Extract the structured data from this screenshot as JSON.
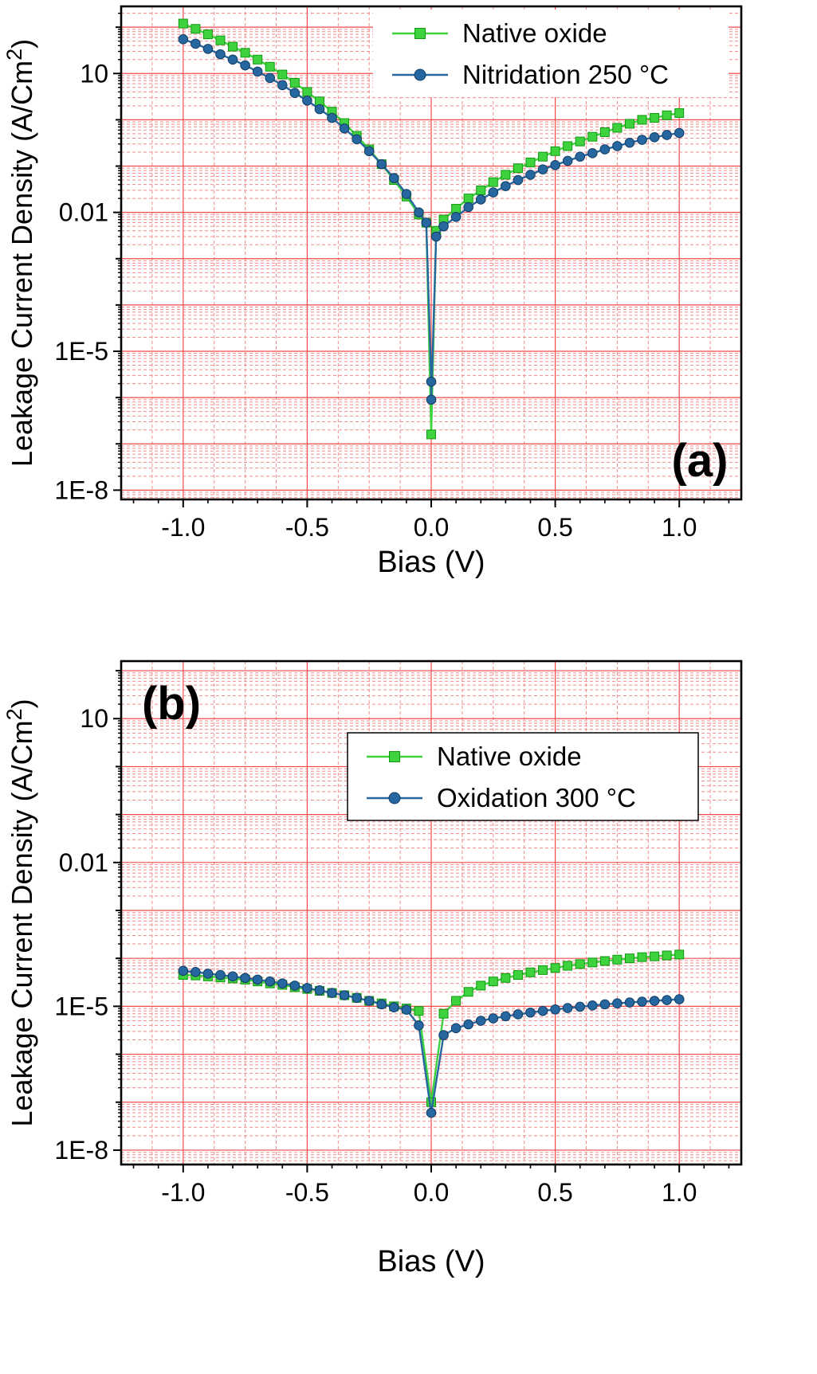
{
  "figure": {
    "title": "Leakage current density vs bias, two panels",
    "background": "#ffffff",
    "colors": {
      "grid_major": "#f04a4a",
      "grid_minor": "#f28b8b",
      "axis": "#000000",
      "text": "#000000",
      "legend_border": "#000000",
      "green": "#3fd23f",
      "green_edge": "#119911",
      "blue": "#2767a0",
      "blue_edge": "#123c63"
    }
  },
  "chart_data": [
    {
      "type": "line",
      "panel_tag": "(a)",
      "xlabel": "Bias (V)",
      "ylabel": "Leakage Current Density (A/Cm²)",
      "xlim": [
        -1.25,
        1.25
      ],
      "ylog_range": [
        -8.2,
        2.45
      ],
      "xticks": [
        -1.0,
        -0.5,
        0.0,
        0.5,
        1.0
      ],
      "xtick_labels": [
        "-1.0",
        "-0.5",
        "0.0",
        "0.5",
        "1.0"
      ],
      "yticks": [
        {
          "log": 1,
          "label": "10"
        },
        {
          "log": -2,
          "label": "0.01"
        },
        {
          "log": -5,
          "label": "1E-5"
        },
        {
          "log": -8,
          "label": "1E-8"
        }
      ],
      "grid": true,
      "legend_position": "top-center-inside",
      "series": [
        {
          "name": "Native oxide",
          "color": "green",
          "marker": "square",
          "x": [
            -1.0,
            -0.95,
            -0.9,
            -0.85,
            -0.8,
            -0.75,
            -0.7,
            -0.65,
            -0.6,
            -0.55,
            -0.5,
            -0.45,
            -0.4,
            -0.35,
            -0.3,
            -0.25,
            -0.2,
            -0.15,
            -0.1,
            -0.05,
            -0.02,
            0.0,
            0.02,
            0.05,
            0.1,
            0.15,
            0.2,
            0.25,
            0.3,
            0.35,
            0.4,
            0.45,
            0.5,
            0.55,
            0.6,
            0.65,
            0.7,
            0.75,
            0.8,
            0.85,
            0.9,
            0.95,
            1.0
          ],
          "y": [
            120,
            92,
            70,
            52,
            38,
            28,
            20,
            14,
            9.5,
            6.3,
            4.0,
            2.5,
            1.5,
            0.85,
            0.45,
            0.23,
            0.11,
            0.05,
            0.022,
            0.009,
            0.006,
            1.6e-07,
            0.004,
            0.007,
            0.012,
            0.02,
            0.03,
            0.045,
            0.065,
            0.09,
            0.12,
            0.16,
            0.21,
            0.27,
            0.34,
            0.43,
            0.54,
            0.67,
            0.82,
            1.0,
            1.1,
            1.25,
            1.4
          ]
        },
        {
          "name": "Nitridation 250 °C",
          "color": "blue",
          "marker": "circle",
          "x": [
            -1.0,
            -0.95,
            -0.9,
            -0.85,
            -0.8,
            -0.75,
            -0.7,
            -0.65,
            -0.6,
            -0.55,
            -0.5,
            -0.45,
            -0.4,
            -0.35,
            -0.3,
            -0.25,
            -0.2,
            -0.15,
            -0.1,
            -0.05,
            -0.02,
            0.0,
            0.0,
            0.02,
            0.05,
            0.1,
            0.15,
            0.2,
            0.25,
            0.3,
            0.35,
            0.4,
            0.45,
            0.5,
            0.55,
            0.6,
            0.65,
            0.7,
            0.75,
            0.8,
            0.85,
            0.9,
            0.95,
            1.0
          ],
          "y": [
            55,
            44,
            34,
            26,
            20,
            15,
            11,
            8,
            5.6,
            3.8,
            2.6,
            1.7,
            1.1,
            0.65,
            0.38,
            0.21,
            0.11,
            0.055,
            0.025,
            0.01,
            0.006,
            2.2e-06,
            9e-07,
            0.003,
            0.005,
            0.008,
            0.013,
            0.019,
            0.027,
            0.037,
            0.05,
            0.065,
            0.085,
            0.105,
            0.13,
            0.16,
            0.19,
            0.23,
            0.27,
            0.32,
            0.37,
            0.42,
            0.47,
            0.52
          ]
        }
      ]
    },
    {
      "type": "line",
      "panel_tag": "(b)",
      "xlabel": "Bias (V)",
      "ylabel": "Leakage Current Density (A/Cm²)",
      "xlim": [
        -1.25,
        1.25
      ],
      "ylog_range": [
        -8.3,
        2.2
      ],
      "xticks": [
        -1.0,
        -0.5,
        0.0,
        0.5,
        1.0
      ],
      "xtick_labels": [
        "-1.0",
        "-0.5",
        "0.0",
        "0.5",
        "1.0"
      ],
      "yticks": [
        {
          "log": 1,
          "label": "10"
        },
        {
          "log": -2,
          "label": "0.01"
        },
        {
          "log": -5,
          "label": "1E-5"
        },
        {
          "log": -8,
          "label": "1E-8"
        }
      ],
      "grid": true,
      "legend_position": "upper-center-inside",
      "series": [
        {
          "name": "Native oxide",
          "color": "green",
          "marker": "square",
          "x": [
            -1.0,
            -0.95,
            -0.9,
            -0.85,
            -0.8,
            -0.75,
            -0.7,
            -0.65,
            -0.6,
            -0.55,
            -0.5,
            -0.45,
            -0.4,
            -0.35,
            -0.3,
            -0.25,
            -0.2,
            -0.15,
            -0.1,
            -0.05,
            0.0,
            0.05,
            0.1,
            0.15,
            0.2,
            0.25,
            0.3,
            0.35,
            0.4,
            0.45,
            0.5,
            0.55,
            0.6,
            0.65,
            0.7,
            0.75,
            0.8,
            0.85,
            0.9,
            0.95,
            1.0
          ],
          "y": [
            4.5e-05,
            4.4e-05,
            4.2e-05,
            4e-05,
            3.8e-05,
            3.6e-05,
            3.3e-05,
            3e-05,
            2.8e-05,
            2.5e-05,
            2.3e-05,
            2.1e-05,
            1.9e-05,
            1.7e-05,
            1.5e-05,
            1.3e-05,
            1.15e-05,
            1e-05,
            9e-06,
            8e-06,
            1e-07,
            7e-06,
            1.3e-05,
            2e-05,
            2.7e-05,
            3.3e-05,
            3.9e-05,
            4.5e-05,
            5.1e-05,
            5.7e-05,
            6.3e-05,
            7e-05,
            7.6e-05,
            8.2e-05,
            8.8e-05,
            9.4e-05,
            0.0001,
            0.000106,
            0.00011,
            0.000115,
            0.00012
          ]
        },
        {
          "name": "Oxidation 300 °C",
          "color": "blue",
          "marker": "circle",
          "x": [
            -1.0,
            -0.95,
            -0.9,
            -0.85,
            -0.8,
            -0.75,
            -0.7,
            -0.65,
            -0.6,
            -0.55,
            -0.5,
            -0.45,
            -0.4,
            -0.35,
            -0.3,
            -0.25,
            -0.2,
            -0.15,
            -0.1,
            -0.05,
            0.0,
            0.05,
            0.1,
            0.15,
            0.2,
            0.25,
            0.3,
            0.35,
            0.4,
            0.45,
            0.5,
            0.55,
            0.6,
            0.65,
            0.7,
            0.75,
            0.8,
            0.85,
            0.9,
            0.95,
            1.0
          ],
          "y": [
            5.5e-05,
            5.2e-05,
            4.8e-05,
            4.5e-05,
            4.2e-05,
            3.9e-05,
            3.6e-05,
            3.3e-05,
            3e-05,
            2.7e-05,
            2.4e-05,
            2.15e-05,
            1.9e-05,
            1.7e-05,
            1.5e-05,
            1.3e-05,
            1.1e-05,
            9.5e-06,
            8.5e-06,
            4e-06,
            6e-08,
            2.5e-06,
            3.5e-06,
            4.2e-06,
            5e-06,
            5.6e-06,
            6.2e-06,
            6.8e-06,
            7.4e-06,
            8e-06,
            8.6e-06,
            9.2e-06,
            9.8e-06,
            1.04e-05,
            1.1e-05,
            1.15e-05,
            1.2e-05,
            1.25e-05,
            1.3e-05,
            1.35e-05,
            1.4e-05
          ]
        }
      ]
    }
  ]
}
